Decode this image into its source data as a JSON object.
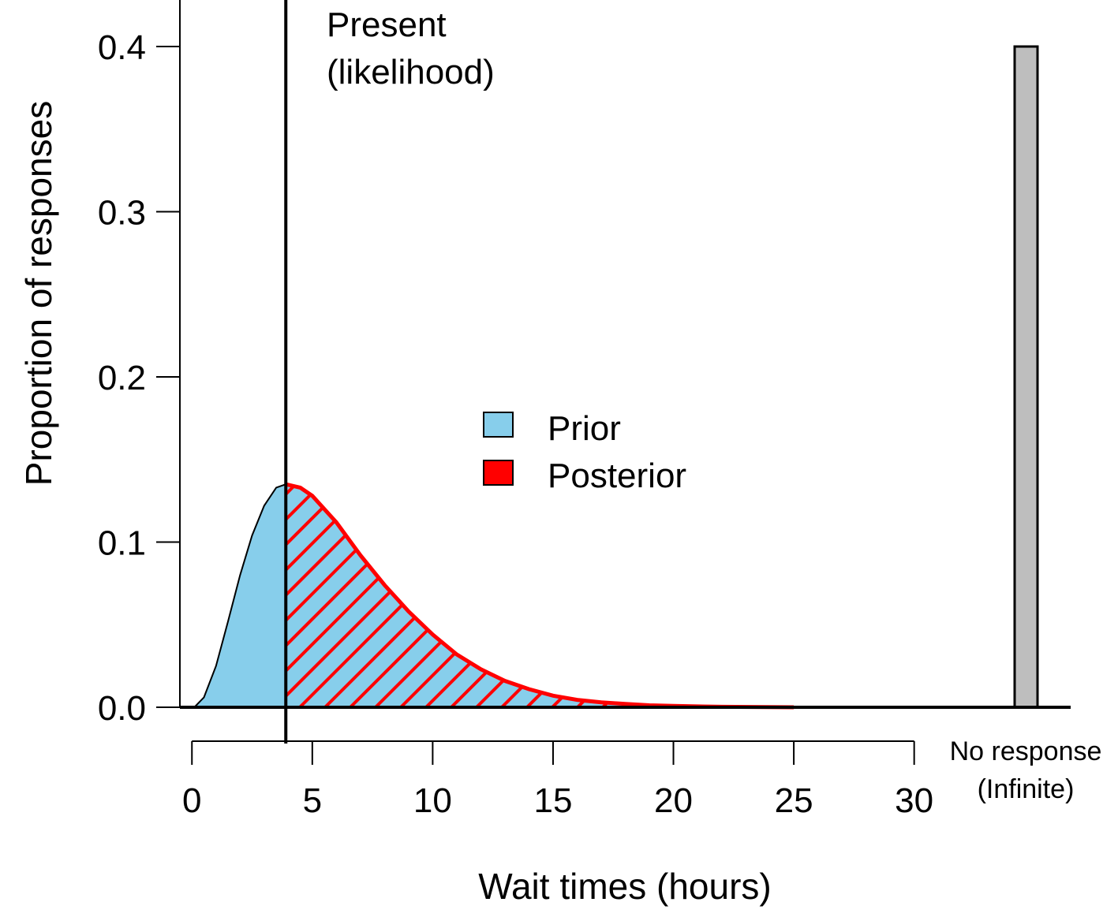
{
  "chart_data": {
    "type": "area",
    "xlabel": "Wait times (hours)",
    "ylabel": "Proportion of responses",
    "xlim": [
      -0.5,
      36.5
    ],
    "ylim": [
      0,
      0.4
    ],
    "x_ticks": [
      0,
      5,
      10,
      15,
      20,
      25,
      30
    ],
    "x_tick_labels": [
      "0",
      "5",
      "10",
      "15",
      "20",
      "25",
      "30"
    ],
    "y_ticks": [
      0,
      0.1,
      0.2,
      0.3,
      0.4
    ],
    "y_tick_labels": [
      "0.0",
      "0.1",
      "0.2",
      "0.3",
      "0.4"
    ],
    "present_line": {
      "x": 3.9,
      "label_line1": "Present",
      "label_line2": "(likelihood)"
    },
    "legend": {
      "placement": "center",
      "prior_label": "Prior",
      "posterior_label": "Posterior"
    },
    "series": [
      {
        "name": "Prior",
        "color": "#87CEEB",
        "x": [
          0.1,
          0.5,
          1,
          1.5,
          2,
          2.5,
          3,
          3.5,
          3.9,
          4.5,
          5,
          6,
          7,
          8,
          9,
          10,
          11,
          12,
          13,
          14,
          15,
          16,
          17,
          18,
          19,
          20,
          22,
          25
        ],
        "values": [
          0,
          0.006,
          0.025,
          0.052,
          0.08,
          0.104,
          0.122,
          0.133,
          0.135,
          0.133,
          0.128,
          0.112,
          0.092,
          0.074,
          0.058,
          0.044,
          0.032,
          0.023,
          0.016,
          0.011,
          0.007,
          0.0045,
          0.003,
          0.002,
          0.0012,
          0.0008,
          0.0003,
          0
        ]
      },
      {
        "name": "Posterior",
        "color": "#FF0000",
        "x": [
          3.9,
          4.5,
          5,
          6,
          7,
          8,
          9,
          10,
          11,
          12,
          13,
          14,
          15,
          16,
          17,
          18,
          19,
          20,
          22,
          25
        ],
        "values": [
          0.135,
          0.133,
          0.128,
          0.112,
          0.092,
          0.074,
          0.058,
          0.044,
          0.032,
          0.023,
          0.016,
          0.011,
          0.007,
          0.0045,
          0.003,
          0.002,
          0.0012,
          0.0008,
          0.0003,
          0
        ]
      }
    ],
    "no_response_bar": {
      "label_line1": "No response",
      "label_line2": "(Infinite)",
      "value": 0.4,
      "color": "#BEBEBE"
    }
  }
}
